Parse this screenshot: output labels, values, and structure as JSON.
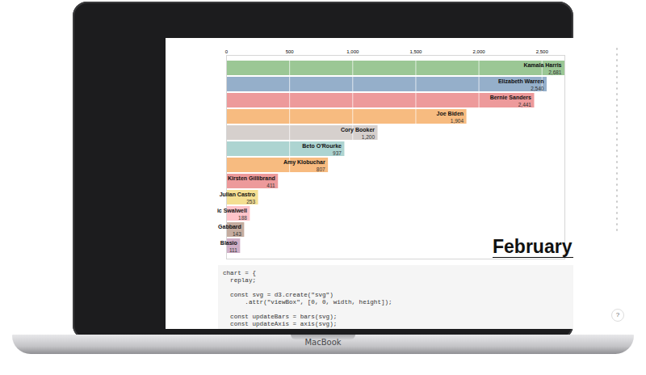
{
  "chart_data": {
    "type": "bar",
    "orientation": "horizontal",
    "categories": [
      "Kamala Harris",
      "Elizabeth Warren",
      "Bernie Sanders",
      "Joe Biden",
      "Cory Booker",
      "Beto O'Rourke",
      "Amy Klobuchar",
      "Kirsten Gillibrand",
      "Julian Castro",
      "ic Swalwell",
      "Gabbard",
      "Blasio"
    ],
    "values": [
      2681,
      2540,
      2441,
      1904,
      1200,
      937,
      807,
      411,
      253,
      188,
      143,
      111
    ],
    "value_labels": [
      "2,681",
      "2,540",
      "2,441",
      "1,904",
      "1,200",
      "937",
      "807",
      "411",
      "253",
      "188",
      "143",
      "111"
    ],
    "colors": [
      "#59a14f",
      "#4e79a7",
      "#e15759",
      "#f28e2c",
      "#bab0ab",
      "#76b7b2",
      "#f28e2c",
      "#e15759",
      "#edc949",
      "#ff9da7",
      "#9c755f",
      "#af7aa1"
    ],
    "xlim": [
      0,
      2681
    ],
    "xticks": [
      0,
      500,
      {
        "value": 1000,
        "label": "1,000"
      },
      {
        "value": 1500,
        "label": "1,500"
      },
      {
        "value": 2000,
        "label": "2,000"
      },
      {
        "value": 2500,
        "label": "2,500"
      }
    ],
    "grid": true,
    "data_labels": true,
    "tick_labels": "x",
    "annotations": [
      "February"
    ]
  },
  "code_editor": {
    "blocks": [
      [
        "chart = {",
        "  replay;"
      ],
      [
        "  const svg = d3.create(\"svg\")",
        "      .attr(\"viewBox\", [0, 0, width, height]);"
      ],
      [
        "  const updateBars = bars(svg);",
        "  const updateAxis = axis(svg);"
      ]
    ]
  },
  "help_button": "?",
  "device_label": "MacBook"
}
